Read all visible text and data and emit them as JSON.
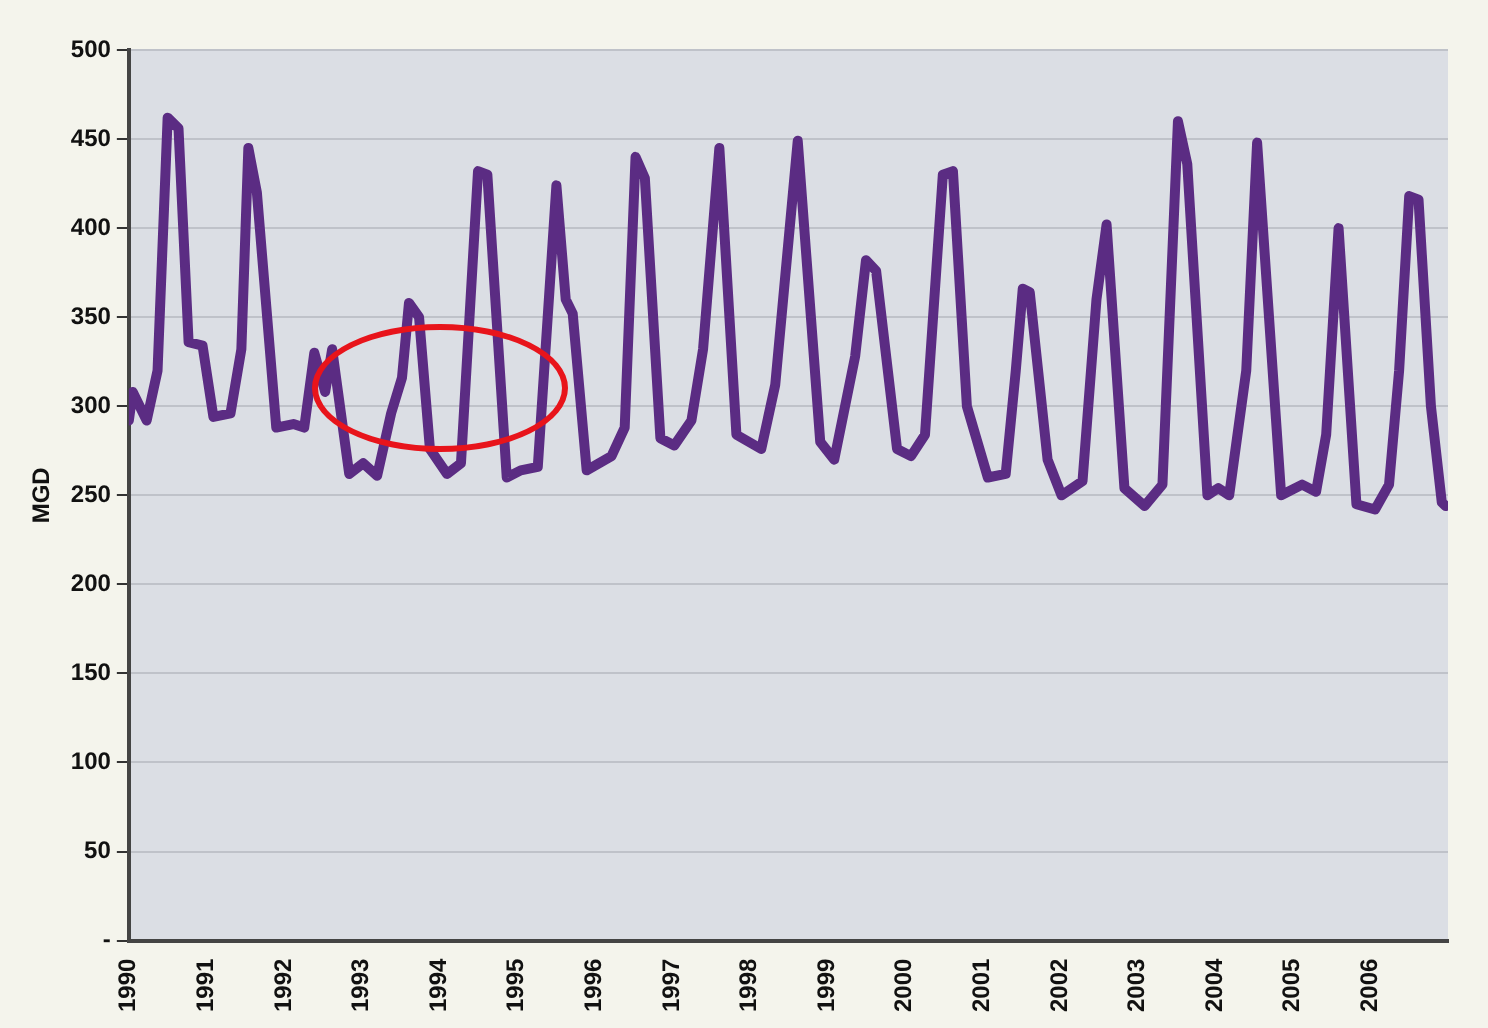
{
  "chart_data": {
    "type": "line",
    "ylabel": "MGD",
    "legend": false,
    "grid": "y",
    "marker": "none",
    "line_style": "solid",
    "xlim": [
      1990,
      2007
    ],
    "xticks": [
      1990,
      1991,
      1992,
      1993,
      1994,
      1995,
      1996,
      1997,
      1998,
      1999,
      2000,
      2001,
      2002,
      2003,
      2004,
      2005,
      2006,
      {
        "value": 2007,
        "label": null
      }
    ],
    "ylim": [
      0,
      500
    ],
    "yticks": [
      {
        "value": 0,
        "label": "-"
      },
      50,
      100,
      150,
      200,
      250,
      300,
      350,
      400,
      450,
      500
    ],
    "series": [
      {
        "color": "#5b2c83",
        "x": [
          1990.0,
          1990.05,
          1990.23,
          1990.37,
          1990.5,
          1990.64,
          1990.77,
          1990.95,
          1991.09,
          1991.31,
          1991.45,
          1991.54,
          1991.65,
          1991.9,
          1992.12,
          1992.26,
          1992.39,
          1992.53,
          1992.62,
          1992.84,
          1993.02,
          1993.2,
          1993.38,
          1993.52,
          1993.61,
          1993.74,
          1993.88,
          1994.1,
          1994.28,
          1994.5,
          1994.62,
          1994.87,
          1995.05,
          1995.27,
          1995.51,
          1995.63,
          1995.72,
          1995.9,
          1996.22,
          1996.39,
          1996.53,
          1996.65,
          1996.85,
          1997.03,
          1997.25,
          1997.4,
          1997.61,
          1997.83,
          1998.15,
          1998.33,
          1998.62,
          1998.91,
          1999.09,
          1999.36,
          1999.5,
          1999.63,
          1999.9,
          2000.08,
          2000.26,
          2000.49,
          2000.62,
          2000.8,
          2001.07,
          2001.3,
          2001.43,
          2001.52,
          2001.61,
          2001.84,
          2002.02,
          2002.29,
          2002.47,
          2002.6,
          2002.83,
          2003.09,
          2003.32,
          2003.52,
          2003.64,
          2003.9,
          2004.04,
          2004.18,
          2004.4,
          2004.54,
          2004.85,
          2005.12,
          2005.3,
          2005.43,
          2005.59,
          2005.82,
          2006.06,
          2006.24,
          2006.37,
          2006.5,
          2006.62,
          2006.78,
          2006.92,
          2006.97
        ],
        "values": [
          292,
          308,
          292,
          320,
          462,
          456,
          336,
          334,
          294,
          296,
          332,
          445,
          420,
          288,
          290,
          288,
          330,
          308,
          332,
          262,
          268,
          261,
          296,
          316,
          358,
          350,
          276,
          262,
          268,
          432,
          430,
          260,
          264,
          266,
          424,
          360,
          352,
          264,
          272,
          288,
          440,
          428,
          282,
          278,
          292,
          332,
          445,
          284,
          276,
          312,
          449,
          280,
          270,
          328,
          382,
          376,
          276,
          272,
          284,
          430,
          432,
          300,
          260,
          262,
          320,
          366,
          364,
          270,
          250,
          258,
          360,
          402,
          254,
          244,
          256,
          460,
          436,
          250,
          254,
          250,
          320,
          448,
          250,
          256,
          252,
          284,
          400,
          245,
          242,
          256,
          320,
          418,
          416,
          300,
          246,
          244
        ]
      }
    ]
  }
}
